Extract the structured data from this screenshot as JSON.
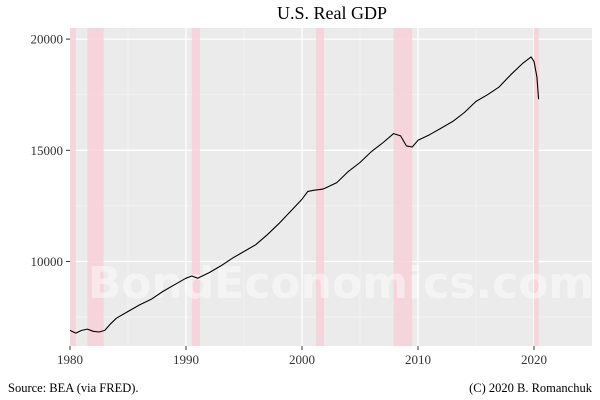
{
  "chart_data": {
    "type": "line",
    "title": "U.S. Real GDP",
    "xlabel": "",
    "ylabel": "",
    "xlim": [
      1980,
      2025
    ],
    "ylim": [
      6200,
      20500
    ],
    "grid": true,
    "x_ticks": [
      1980,
      1990,
      2000,
      2010,
      2020
    ],
    "y_ticks": [
      10000,
      15000,
      20000
    ],
    "recessions": [
      [
        1980.0,
        1980.5
      ],
      [
        1981.5,
        1982.9
      ],
      [
        1990.5,
        1991.2
      ],
      [
        2001.2,
        2001.9
      ],
      [
        2007.9,
        2009.5
      ],
      [
        2020.0,
        2020.4
      ]
    ],
    "series": [
      {
        "name": "",
        "color": "#000000",
        "points": [
          [
            1980.0,
            6900
          ],
          [
            1980.5,
            6780
          ],
          [
            1981.0,
            6900
          ],
          [
            1981.5,
            6960
          ],
          [
            1982.0,
            6860
          ],
          [
            1982.5,
            6830
          ],
          [
            1983.0,
            6900
          ],
          [
            1983.5,
            7200
          ],
          [
            1984.0,
            7450
          ],
          [
            1985.0,
            7750
          ],
          [
            1986.0,
            8050
          ],
          [
            1987.0,
            8300
          ],
          [
            1988.0,
            8650
          ],
          [
            1989.0,
            8950
          ],
          [
            1990.0,
            9250
          ],
          [
            1990.5,
            9350
          ],
          [
            1991.0,
            9250
          ],
          [
            1992.0,
            9500
          ],
          [
            1993.0,
            9800
          ],
          [
            1994.0,
            10150
          ],
          [
            1995.0,
            10450
          ],
          [
            1996.0,
            10750
          ],
          [
            1997.0,
            11200
          ],
          [
            1998.0,
            11700
          ],
          [
            1999.0,
            12250
          ],
          [
            2000.0,
            12800
          ],
          [
            2000.5,
            13150
          ],
          [
            2001.0,
            13200
          ],
          [
            2001.75,
            13250
          ],
          [
            2002.0,
            13300
          ],
          [
            2003.0,
            13550
          ],
          [
            2004.0,
            14050
          ],
          [
            2005.0,
            14450
          ],
          [
            2006.0,
            14950
          ],
          [
            2007.0,
            15350
          ],
          [
            2007.9,
            15750
          ],
          [
            2008.5,
            15650
          ],
          [
            2009.0,
            15200
          ],
          [
            2009.5,
            15150
          ],
          [
            2010.0,
            15450
          ],
          [
            2011.0,
            15700
          ],
          [
            2012.0,
            16000
          ],
          [
            2013.0,
            16300
          ],
          [
            2014.0,
            16700
          ],
          [
            2015.0,
            17200
          ],
          [
            2016.0,
            17500
          ],
          [
            2017.0,
            17850
          ],
          [
            2018.0,
            18400
          ],
          [
            2019.0,
            18900
          ],
          [
            2019.75,
            19200
          ],
          [
            2020.0,
            19000
          ],
          [
            2020.25,
            18300
          ],
          [
            2020.4,
            17300
          ]
        ]
      }
    ]
  },
  "footer": {
    "source": "Source: BEA (via FRED).",
    "credit": "(C) 2020 B. Romanchuk"
  },
  "watermark": "BondEconomics.com",
  "colors": {
    "panel": "#ebebeb",
    "grid_major": "#ffffff",
    "recession": "#f8d0d8",
    "line": "#000000"
  }
}
